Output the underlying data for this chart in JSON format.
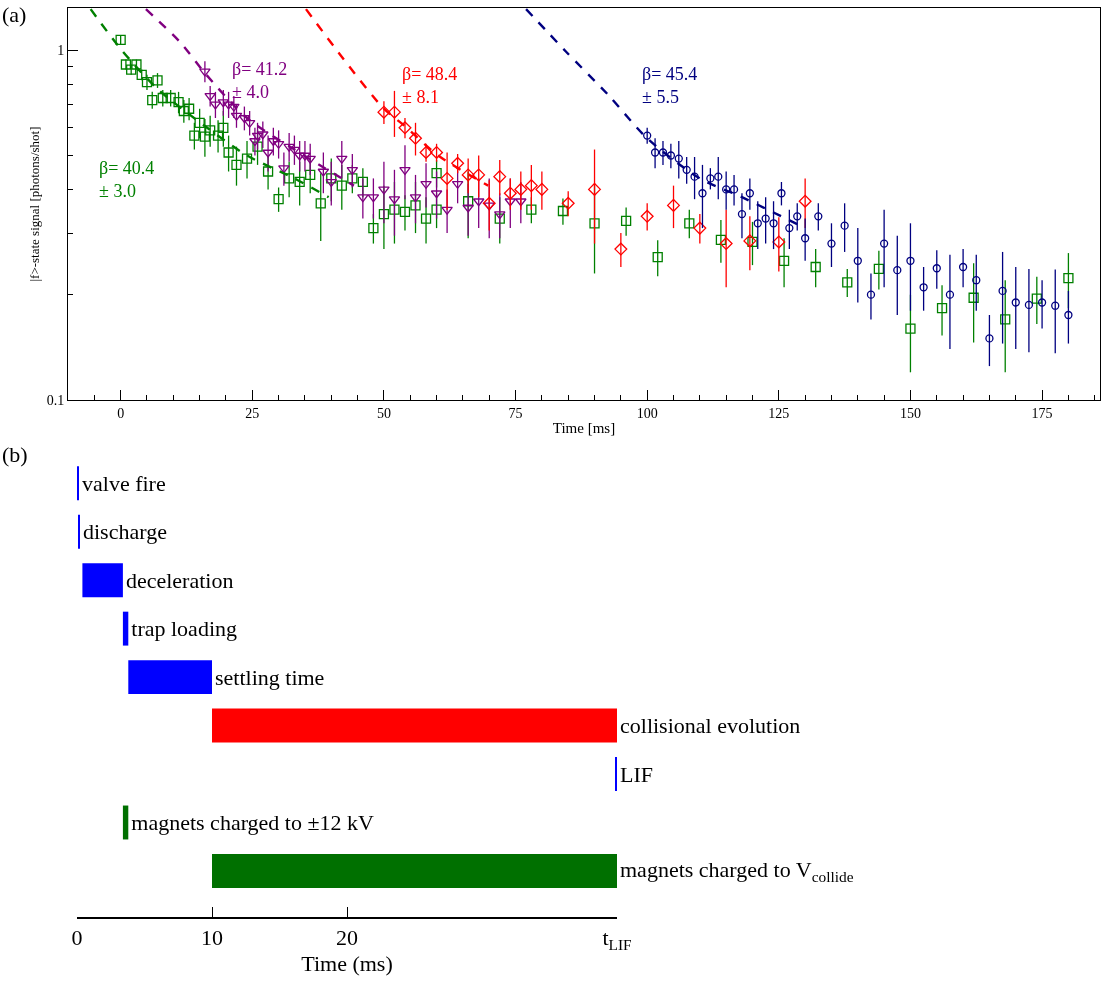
{
  "chart_data": [
    {
      "type": "scatter",
      "title": "(a)",
      "xlabel": "Time [ms]",
      "ylabel": "|f>-state signal [photons/shot]",
      "log": "y",
      "xlim": [
        -10,
        186
      ],
      "ylim": [
        0.1,
        1.32
      ],
      "xticks": [
        {
          "value": -5,
          "label": null
        },
        0,
        {
          "value": 5,
          "label": null
        },
        {
          "value": 10,
          "label": null
        },
        {
          "value": 15,
          "label": null
        },
        {
          "value": 20,
          "label": null
        },
        25,
        {
          "value": 30,
          "label": null
        },
        {
          "value": 35,
          "label": null
        },
        {
          "value": 40,
          "label": null
        },
        {
          "value": 45,
          "label": null
        },
        50,
        {
          "value": 55,
          "label": null
        },
        {
          "value": 60,
          "label": null
        },
        {
          "value": 65,
          "label": null
        },
        {
          "value": 70,
          "label": null
        },
        75,
        {
          "value": 80,
          "label": null
        },
        {
          "value": 85,
          "label": null
        },
        {
          "value": 90,
          "label": null
        },
        {
          "value": 95,
          "label": null
        },
        100,
        {
          "value": 105,
          "label": null
        },
        {
          "value": 110,
          "label": null
        },
        {
          "value": 115,
          "label": null
        },
        {
          "value": 120,
          "label": null
        },
        125,
        {
          "value": 130,
          "label": null
        },
        {
          "value": 135,
          "label": null
        },
        {
          "value": 140,
          "label": null
        },
        {
          "value": 145,
          "label": null
        },
        150,
        {
          "value": 155,
          "label": null
        },
        {
          "value": 160,
          "label": null
        },
        {
          "value": 165,
          "label": null
        },
        {
          "value": 170,
          "label": null
        },
        175,
        {
          "value": 180,
          "label": null
        },
        {
          "value": 185,
          "label": null
        }
      ],
      "yticks": [
        0.1,
        {
          "value": 0.2,
          "label": null
        },
        {
          "value": 0.3,
          "label": null
        },
        {
          "value": 0.4,
          "label": null
        },
        {
          "value": 0.5,
          "label": null
        },
        {
          "value": 0.6,
          "label": null
        },
        {
          "value": 0.7,
          "label": null
        },
        {
          "value": 0.8,
          "label": null
        },
        {
          "value": 0.9,
          "label": null
        },
        1
      ],
      "series": [
        {
          "color": "#008000",
          "marker": "square",
          "x": [
            0,
            1,
            2,
            3,
            4,
            5,
            6,
            7,
            8,
            9.5,
            11,
            12,
            13,
            14,
            15,
            16,
            17,
            18.5,
            19.5,
            20.5,
            22,
            24,
            26,
            28,
            30,
            32,
            34,
            36,
            38,
            40,
            42,
            44,
            46,
            48,
            50,
            52,
            54,
            56,
            58,
            60,
            60,
            66,
            72,
            78,
            84,
            90,
            96,
            102,
            108,
            114,
            120,
            126,
            132,
            138,
            144,
            150,
            156,
            162,
            168,
            174,
            180
          ],
          "values": [
            1.07,
            0.91,
            0.88,
            0.91,
            0.85,
            0.81,
            0.72,
            0.82,
            0.73,
            0.73,
            0.71,
            0.67,
            0.68,
            0.57,
            0.62,
            0.566,
            0.59,
            0.57,
            0.6,
            0.51,
            0.47,
            0.49,
            0.53,
            0.45,
            0.375,
            0.43,
            0.42,
            0.44,
            0.365,
            0.43,
            0.41,
            0.43,
            0.42,
            0.31,
            0.34,
            0.35,
            0.345,
            0.36,
            0.33,
            0.445,
            0.35,
            0.37,
            0.33,
            0.35,
            0.347,
            0.32,
            0.325,
            0.256,
            0.32,
            0.287,
            0.283,
            0.25,
            0.24,
            0.217,
            0.237,
            0.16,
            0.183,
            0.196,
            0.17,
            0.195,
            0.223
          ],
          "errors": [
            0.03,
            0.03,
            0.03,
            0.03,
            0.03,
            0.04,
            0.04,
            0.04,
            0.04,
            0.04,
            0.05,
            0.05,
            0.05,
            0.05,
            0.06,
            0.07,
            0.06,
            0.06,
            0.07,
            0.06,
            0.06,
            0.06,
            0.06,
            0.05,
            0.03,
            0.05,
            0.06,
            0.05,
            0.08,
            0.06,
            0.06,
            0.04,
            0.04,
            0.03,
            0.07,
            0.07,
            0.04,
            0.06,
            0.05,
            0.04,
            0.04,
            0.08,
            0.05,
            0.03,
            0.03,
            0.09,
            0.03,
            0.03,
            0.03,
            0.04,
            0.04,
            0.04,
            0.03,
            0.02,
            0.03,
            0.04,
            0.03,
            0.05,
            0.05,
            0.03,
            0.04
          ]
        },
        {
          "color": "#800080",
          "marker": "triangle",
          "x": [
            16,
            17,
            18,
            19.5,
            20.5,
            21.5,
            22,
            23.5,
            24.5,
            25.5,
            26,
            27,
            28,
            29,
            30,
            31,
            32,
            33,
            34,
            35,
            36,
            38.5,
            40,
            42,
            44,
            46,
            48,
            50,
            52,
            54,
            56,
            58,
            60,
            62,
            64,
            66,
            68,
            70,
            72,
            74,
            76
          ],
          "values": [
            0.87,
            0.74,
            0.7,
            0.71,
            0.7,
            0.69,
            0.65,
            0.64,
            0.62,
            0.55,
            0.57,
            0.575,
            0.51,
            0.55,
            0.54,
            0.46,
            0.53,
            0.52,
            0.5,
            0.5,
            0.49,
            0.45,
            0.42,
            0.49,
            0.455,
            0.38,
            0.38,
            0.4,
            0.375,
            0.455,
            0.38,
            0.415,
            0.39,
            0.35,
            0.415,
            0.355,
            0.37,
            0.36,
            0.34,
            0.37,
            0.37
          ],
          "errors": [
            0.06,
            0.05,
            0.06,
            0.06,
            0.06,
            0.05,
            0.05,
            0.05,
            0.05,
            0.05,
            0.05,
            0.05,
            0.06,
            0.05,
            0.05,
            0.05,
            0.05,
            0.05,
            0.05,
            0.05,
            0.05,
            0.06,
            0.06,
            0.06,
            0.05,
            0.05,
            0.05,
            0.08,
            0.08,
            0.08,
            0.06,
            0.06,
            0.06,
            0.05,
            0.05,
            0.06,
            0.06,
            0.07,
            0.05,
            0.06,
            0.05
          ]
        },
        {
          "color": "#ff0000",
          "marker": "diamond",
          "x": [
            50,
            52,
            54,
            56,
            58,
            60,
            62,
            64,
            66,
            68,
            70,
            72,
            74,
            76,
            78,
            80,
            85,
            90,
            95,
            100,
            105,
            110,
            115,
            119.5,
            125,
            130
          ],
          "values": [
            0.665,
            0.665,
            0.6,
            0.56,
            0.51,
            0.51,
            0.43,
            0.475,
            0.44,
            0.44,
            0.365,
            0.435,
            0.39,
            0.4,
            0.41,
            0.4,
            0.365,
            0.4,
            0.27,
            0.335,
            0.36,
            0.31,
            0.28,
            0.285,
            0.283,
            0.37
          ],
          "errors": [
            0.05,
            0.1,
            0.04,
            0.06,
            0.03,
            0.03,
            0.08,
            0.03,
            0.05,
            0.06,
            0.06,
            0.05,
            0.04,
            0.05,
            0.06,
            0.05,
            0.03,
            0.12,
            0.03,
            0.03,
            0.05,
            0.03,
            0.07,
            0.05,
            0.05,
            0.06
          ]
        },
        {
          "color": "#000080",
          "marker": "circle",
          "x": [
            100,
            101.5,
            103,
            104.5,
            106,
            107.5,
            109,
            110.5,
            112,
            113.5,
            115,
            116.5,
            118,
            119.5,
            121,
            122.5,
            124,
            125.5,
            127,
            128.5,
            130,
            132.5,
            135,
            137.5,
            140,
            142.5,
            145,
            147.5,
            150,
            152.5,
            155,
            157.5,
            160,
            162.5,
            165,
            167.5,
            170,
            172.5,
            175,
            177.5,
            180
          ],
          "values": [
            0.57,
            0.51,
            0.51,
            0.5,
            0.49,
            0.455,
            0.435,
            0.39,
            0.43,
            0.435,
            0.4,
            0.4,
            0.34,
            0.39,
            0.32,
            0.33,
            0.32,
            0.39,
            0.31,
            0.335,
            0.29,
            0.335,
            0.28,
            0.315,
            0.25,
            0.2,
            0.28,
            0.235,
            0.25,
            0.21,
            0.238,
            0.2,
            0.24,
            0.22,
            0.15,
            0.205,
            0.19,
            0.187,
            0.19,
            0.186,
            0.175
          ],
          "errors": [
            0.03,
            0.05,
            0.04,
            0.04,
            0.06,
            0.04,
            0.06,
            0.08,
            0.03,
            0.06,
            0.05,
            0.04,
            0.05,
            0.04,
            0.05,
            0.05,
            0.05,
            0.03,
            0.04,
            0.03,
            0.04,
            0.03,
            0.04,
            0.05,
            0.06,
            0.03,
            0.07,
            0.06,
            0.07,
            0.03,
            0.03,
            0.06,
            0.03,
            0.04,
            0.025,
            0.06,
            0.05,
            0.05,
            0.03,
            0.05,
            0.03
          ]
        },
        {
          "type": "line",
          "color": "#008000",
          "line_style": "dashed",
          "marker": "none",
          "x": [
            -5.7,
            0.2,
            7,
            15.8,
            24,
            33,
            39.5
          ],
          "values": [
            1.31,
            1.0,
            0.775,
            0.61,
            0.5,
            0.43,
            0.38
          ]
        },
        {
          "type": "line",
          "color": "#800080",
          "line_style": "dashed",
          "marker": "none",
          "x": [
            4.8,
            11.4,
            16,
            24,
            33,
            44.3
          ],
          "values": [
            1.31,
            1.05,
            0.86,
            0.64,
            0.52,
            0.41
          ]
        },
        {
          "type": "line",
          "color": "#ff0000",
          "line_style": "dashed",
          "marker": "none",
          "x": [
            35.2,
            42.4,
            50,
            53.8,
            60.3,
            69.8
          ],
          "values": [
            1.31,
            0.94,
            0.68,
            0.61,
            0.5,
            0.41
          ]
        },
        {
          "type": "line",
          "color": "#000080",
          "line_style": "dashed",
          "marker": "none",
          "x": [
            77,
            84.6,
            92.6,
            100,
            110,
            118,
            130
          ],
          "values": [
            1.31,
            0.99,
            0.745,
            0.56,
            0.43,
            0.38,
            0.31
          ]
        }
      ],
      "annotations": [
        "β= 40.4\n± 3.0",
        "β= 41.2\n± 4.0",
        "β= 48.4\n± 8.1",
        "β= 45.4\n± 5.5"
      ]
    },
    {
      "type": "bar",
      "title": "(b)",
      "orientation": "horizontal",
      "xlabel": "Time (ms)",
      "tick_labels": "x",
      "categories": [
        "valve fire",
        "discharge",
        "deceleration",
        "trap loading",
        "settling time",
        "collisional evolution",
        "LIF",
        "magnets charged to ±12 kV",
        "magnets charged to V$_{collide}$"
      ],
      "base": [
        0,
        0.1,
        0.4,
        3.4,
        3.8,
        10,
        39.9,
        3.4,
        10
      ],
      "values": [
        0.1,
        0.1,
        3.0,
        0.4,
        6.2,
        30,
        0.1,
        0.4,
        30
      ],
      "colors": [
        "#0000ff",
        "#0000ff",
        "#0000ff",
        "#0000ff",
        "#0000ff",
        "#ff0000",
        "#0000ff",
        "#007000",
        "#007000"
      ],
      "xlim": [
        0,
        40
      ],
      "xticks": [
        0,
        10,
        20,
        {
          "value": 40,
          "label": "t$_{LIF}$"
        }
      ]
    }
  ]
}
